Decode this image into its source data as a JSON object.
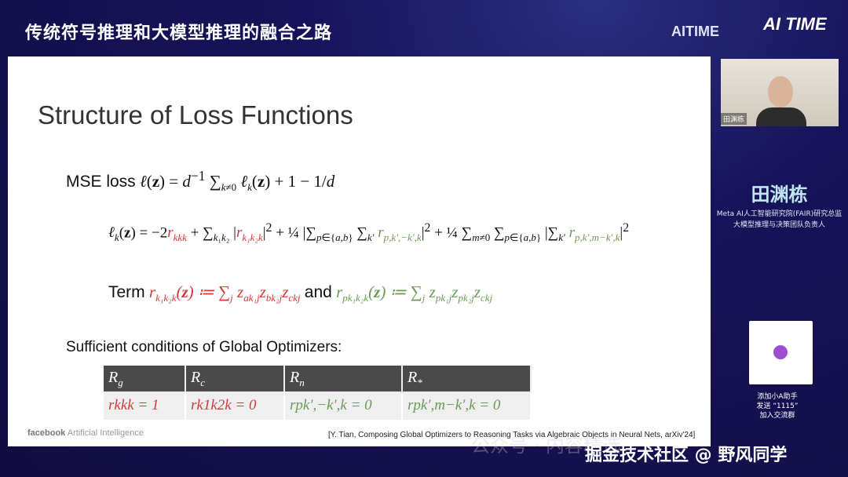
{
  "header": {
    "title": "传统符号推理和大模型推理的融合之路",
    "logo_text": "AITIME",
    "logo_badge": "AI TIME"
  },
  "slide": {
    "title": "Structure of Loss Functions",
    "mse_label": "MSE loss",
    "mse_formula": "ℓ(z) = d⁻¹ ∑k≠0 ℓk(z) + 1 − 1/d",
    "lk_formula": "ℓk(z) = −2rkkk + ∑k1k2 |rk1k2k|² + ¼ |∑p∈{a,b} ∑k′ rp,k′,−k′,k|² + ¼ ∑m≠0 ∑p∈{a,b} |∑k′ rp,k′,m−k′,k|²",
    "term_label": "Term",
    "term_and": "and",
    "term1": "rk1k2k(z) ≔ ∑j zak1j zbk2j zckj",
    "term2": "rpk1k2k(z) ≔ ∑j zpk1j zpk2j zckj",
    "conditions_heading": "Sufficient conditions of Global Optimizers:",
    "table": {
      "headers": [
        "Rg",
        "Rc",
        "Rn",
        "R*"
      ],
      "row": [
        "rkkk = 1",
        "rk1k2k = 0",
        "rpk′,−k′,k = 0",
        "rpk′,m−k′,k = 0"
      ]
    },
    "footer_brand": "facebook",
    "footer_sub": "Artificial Intelligence",
    "citation": "[Y. Tian, Composing Global Optimizers to Reasoning Tasks via Algebraic Objects in Neural Nets, arXiv'24]"
  },
  "speaker": {
    "video_label": "田渊栋",
    "name": "田渊栋",
    "affiliation_1": "Meta AI人工智能研究院(FAIR)研究总监",
    "affiliation_2": "大模型推理与决策团队负责人"
  },
  "qr": {
    "line1": "添加小A助手",
    "line2": "发送 “1115”",
    "line3": "加入交流群"
  },
  "watermark": {
    "main": "掘金技术社区 @ 野风同学",
    "faint": "公众号 · 内容精选"
  },
  "colors": {
    "red_term": "#d23a3a",
    "green_term": "#6a9a55",
    "background": "#14104a"
  }
}
